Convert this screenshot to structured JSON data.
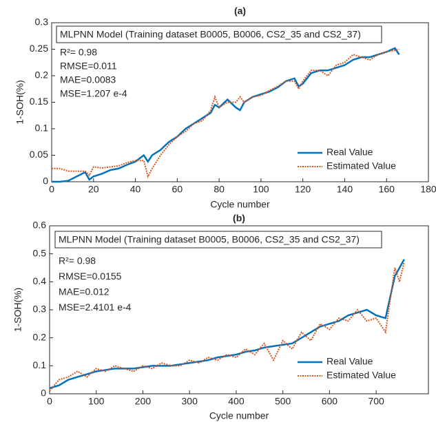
{
  "chart_data": [
    {
      "type": "line",
      "title": "(a)",
      "annotation": "MLPNN Model (Training dataset B0005, B0006, CS2_35 and CS2_37)",
      "stats": [
        "R²= 0.98",
        "RMSE=0.011",
        "MAE=0.0083",
        "MSE=1.207 e-4"
      ],
      "xlabel": "Cycle number",
      "ylabel": "1-SOH(%)",
      "grid": false,
      "legend": "lower right",
      "x": [
        0,
        4,
        8,
        12,
        16,
        18,
        20,
        24,
        28,
        32,
        36,
        40,
        44,
        46,
        48,
        52,
        56,
        60,
        64,
        68,
        72,
        76,
        78,
        80,
        84,
        88,
        90,
        92,
        96,
        100,
        104,
        108,
        112,
        116,
        118,
        120,
        124,
        128,
        132,
        136,
        140,
        144,
        148,
        152,
        156,
        160,
        164,
        166
      ],
      "series": [
        {
          "name": "Real Value",
          "color": "#0072BD",
          "values": [
            0,
            0,
            0.002,
            0.01,
            0.018,
            0.004,
            0.01,
            0.015,
            0.022,
            0.025,
            0.032,
            0.038,
            0.05,
            0.038,
            0.05,
            0.06,
            0.075,
            0.085,
            0.1,
            0.11,
            0.12,
            0.13,
            0.145,
            0.14,
            0.155,
            0.14,
            0.135,
            0.15,
            0.16,
            0.165,
            0.17,
            0.178,
            0.19,
            0.195,
            0.18,
            0.185,
            0.205,
            0.21,
            0.21,
            0.215,
            0.22,
            0.23,
            0.235,
            0.235,
            0.24,
            0.245,
            0.252,
            0.24
          ]
        },
        {
          "name": "Estimated Value",
          "color": "#D95319",
          "values": [
            0.025,
            0.025,
            0.02,
            0.02,
            0.02,
            0.012,
            0.028,
            0.026,
            0.028,
            0.03,
            0.036,
            0.04,
            0.04,
            0.01,
            0.025,
            0.05,
            0.07,
            0.085,
            0.095,
            0.11,
            0.115,
            0.135,
            0.16,
            0.14,
            0.15,
            0.15,
            0.16,
            0.15,
            0.16,
            0.163,
            0.172,
            0.18,
            0.19,
            0.19,
            0.175,
            0.19,
            0.21,
            0.21,
            0.2,
            0.22,
            0.225,
            0.24,
            0.235,
            0.23,
            0.24,
            0.245,
            0.248,
            0.25
          ]
        }
      ],
      "xlim": [
        0,
        180
      ],
      "xticks": [
        0,
        20,
        40,
        60,
        80,
        100,
        120,
        140,
        160,
        180
      ],
      "ylim": [
        0,
        0.3
      ],
      "yticks": [
        0,
        0.05,
        0.1,
        0.15,
        0.2,
        0.25,
        0.3
      ]
    },
    {
      "type": "line",
      "title": "(b)",
      "annotation": "MLPNN Model (Training dataset B0005, B0006, CS2_35 and CS2_37)",
      "stats": [
        "R²= 0.98",
        "RMSE=0.0155",
        "MAE=0.012",
        "MSE=2.4101 e-4"
      ],
      "xlabel": "Cycle number",
      "ylabel": "1-SOH(%)",
      "grid": false,
      "legend": "lower right",
      "x": [
        0,
        20,
        40,
        60,
        80,
        100,
        120,
        140,
        160,
        180,
        200,
        220,
        240,
        260,
        280,
        300,
        320,
        340,
        360,
        380,
        400,
        420,
        440,
        460,
        480,
        500,
        520,
        540,
        560,
        580,
        600,
        620,
        640,
        660,
        680,
        700,
        720,
        740,
        750,
        760
      ],
      "series": [
        {
          "name": "Real Value",
          "color": "#0072BD",
          "values": [
            0.02,
            0.03,
            0.05,
            0.06,
            0.07,
            0.08,
            0.085,
            0.09,
            0.09,
            0.09,
            0.095,
            0.1,
            0.1,
            0.1,
            0.105,
            0.11,
            0.115,
            0.12,
            0.13,
            0.135,
            0.14,
            0.15,
            0.155,
            0.165,
            0.17,
            0.175,
            0.18,
            0.2,
            0.22,
            0.24,
            0.25,
            0.26,
            0.28,
            0.29,
            0.3,
            0.28,
            0.27,
            0.42,
            0.45,
            0.48
          ]
        },
        {
          "name": "Estimated Value",
          "color": "#D95319",
          "values": [
            0.01,
            0.05,
            0.06,
            0.08,
            0.06,
            0.09,
            0.08,
            0.1,
            0.09,
            0.08,
            0.1,
            0.09,
            0.11,
            0.1,
            0.1,
            0.12,
            0.11,
            0.13,
            0.12,
            0.14,
            0.13,
            0.16,
            0.14,
            0.18,
            0.12,
            0.19,
            0.16,
            0.22,
            0.19,
            0.25,
            0.23,
            0.27,
            0.26,
            0.3,
            0.26,
            0.27,
            0.22,
            0.45,
            0.4,
            0.47
          ]
        }
      ],
      "xlim": [
        0,
        812
      ],
      "xticks": [
        0,
        100,
        200,
        300,
        400,
        500,
        600,
        700
      ],
      "ylim": [
        0,
        0.6
      ],
      "yticks": [
        0,
        0.1,
        0.2,
        0.3,
        0.4,
        0.5,
        0.6
      ]
    }
  ]
}
